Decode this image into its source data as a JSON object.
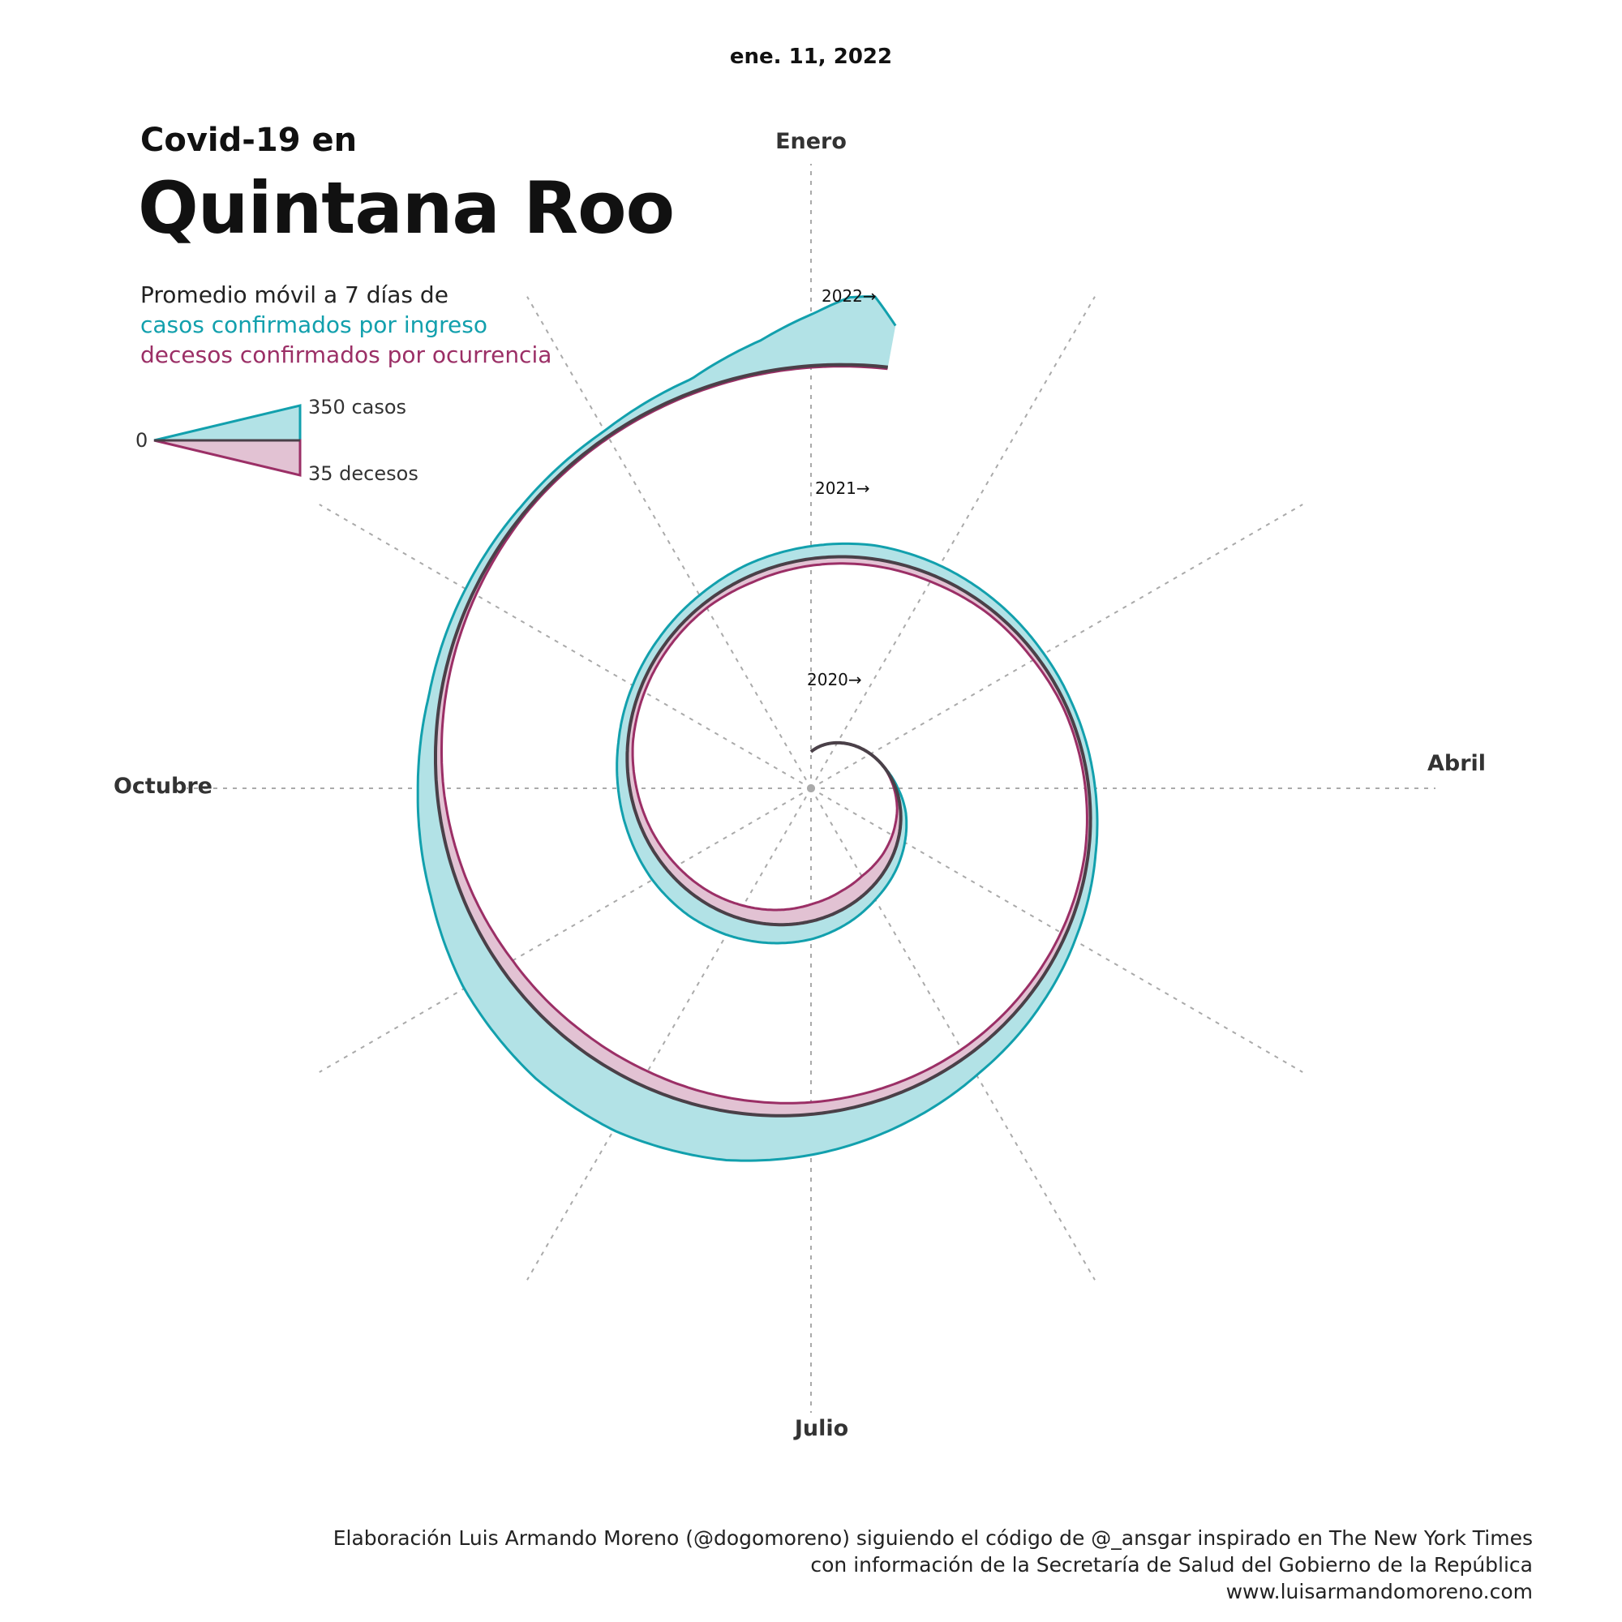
{
  "header": {
    "date": "ene. 11, 2022",
    "title_small": "Covid-19 en",
    "title_big": "Quintana Roo",
    "subtitle_line1": "Promedio móvil a 7 días de",
    "subtitle_line2": "casos confirmados por ingreso",
    "subtitle_line3": "decesos confirmados por ocurrencia"
  },
  "legend": {
    "zero": "0",
    "cases": "350 casos",
    "deaths": "35 decesos"
  },
  "footer": {
    "line1": "Elaboración Luis Armando Moreno (@dogomoreno) siguiendo el código de @_ansgar inspirado en The New York Times",
    "line2": "con información de la Secretaría de Salud del Gobierno de la República",
    "line3": "www.luisarmandomoreno.com"
  },
  "colors": {
    "cases_fill": "#b2e2e6",
    "cases_stroke": "#12a0ad",
    "deaths_fill": "#e2c2d3",
    "deaths_stroke": "#9b2f66",
    "baseline": "#4a4048",
    "grid": "#aaaaaa"
  },
  "chart_data": {
    "type": "area",
    "layout": "spiral (one revolution per year, clockwise, January at top)",
    "months": [
      "Enero",
      "Abril",
      "Julio",
      "Octubre"
    ],
    "year_labels": [
      "2020→",
      "2021→",
      "2022→"
    ],
    "legend_scale": {
      "cases": 350,
      "deaths": 35
    },
    "series": [
      {
        "name": "casos confirmados por ingreso",
        "points": [
          [
            "2020-03-15",
            0
          ],
          [
            "2020-04-01",
            10
          ],
          [
            "2020-04-15",
            25
          ],
          [
            "2020-05-01",
            35
          ],
          [
            "2020-05-15",
            45
          ],
          [
            "2020-06-01",
            55
          ],
          [
            "2020-06-15",
            70
          ],
          [
            "2020-07-01",
            85
          ],
          [
            "2020-07-15",
            90
          ],
          [
            "2020-08-01",
            95
          ],
          [
            "2020-08-15",
            95
          ],
          [
            "2020-09-01",
            85
          ],
          [
            "2020-09-15",
            70
          ],
          [
            "2020-10-01",
            55
          ],
          [
            "2020-10-15",
            45
          ],
          [
            "2020-11-01",
            40
          ],
          [
            "2020-11-15",
            40
          ],
          [
            "2020-12-01",
            45
          ],
          [
            "2020-12-15",
            55
          ],
          [
            "2021-01-01",
            60
          ],
          [
            "2021-01-15",
            65
          ],
          [
            "2021-02-01",
            55
          ],
          [
            "2021-02-15",
            45
          ],
          [
            "2021-03-01",
            35
          ],
          [
            "2021-03-15",
            30
          ],
          [
            "2021-04-01",
            30
          ],
          [
            "2021-04-15",
            35
          ],
          [
            "2021-05-01",
            50
          ],
          [
            "2021-05-15",
            70
          ],
          [
            "2021-06-01",
            100
          ],
          [
            "2021-06-15",
            140
          ],
          [
            "2021-07-01",
            190
          ],
          [
            "2021-07-15",
            230
          ],
          [
            "2021-08-01",
            250
          ],
          [
            "2021-08-15",
            240
          ],
          [
            "2021-09-01",
            200
          ],
          [
            "2021-09-15",
            140
          ],
          [
            "2021-10-01",
            90
          ],
          [
            "2021-10-15",
            55
          ],
          [
            "2021-11-01",
            40
          ],
          [
            "2021-11-15",
            30
          ],
          [
            "2021-12-01",
            30
          ],
          [
            "2021-12-15",
            60
          ],
          [
            "2021-12-25",
            150
          ],
          [
            "2022-01-01",
            250
          ],
          [
            "2022-01-05",
            320
          ],
          [
            "2022-01-08",
            330
          ],
          [
            "2022-01-11",
            200
          ]
        ]
      },
      {
        "name": "decesos confirmados por ocurrencia",
        "points": [
          [
            "2020-03-15",
            0
          ],
          [
            "2020-04-01",
            1
          ],
          [
            "2020-04-15",
            2
          ],
          [
            "2020-05-01",
            4
          ],
          [
            "2020-05-15",
            6
          ],
          [
            "2020-06-01",
            9
          ],
          [
            "2020-06-15",
            10
          ],
          [
            "2020-07-01",
            10
          ],
          [
            "2020-07-15",
            9
          ],
          [
            "2020-08-01",
            8
          ],
          [
            "2020-08-15",
            7
          ],
          [
            "2020-09-01",
            6
          ],
          [
            "2020-09-15",
            5
          ],
          [
            "2020-10-01",
            4
          ],
          [
            "2020-10-15",
            3
          ],
          [
            "2020-11-01",
            3
          ],
          [
            "2020-11-15",
            3
          ],
          [
            "2020-12-01",
            3
          ],
          [
            "2020-12-15",
            4
          ],
          [
            "2021-01-01",
            4
          ],
          [
            "2021-01-15",
            4
          ],
          [
            "2021-02-01",
            4
          ],
          [
            "2021-02-15",
            3
          ],
          [
            "2021-03-01",
            3
          ],
          [
            "2021-03-15",
            2
          ],
          [
            "2021-04-01",
            2
          ],
          [
            "2021-04-15",
            2
          ],
          [
            "2021-05-01",
            3
          ],
          [
            "2021-05-15",
            4
          ],
          [
            "2021-06-01",
            5
          ],
          [
            "2021-06-15",
            6
          ],
          [
            "2021-07-01",
            7
          ],
          [
            "2021-07-15",
            8
          ],
          [
            "2021-08-01",
            9
          ],
          [
            "2021-08-15",
            9
          ],
          [
            "2021-09-01",
            8
          ],
          [
            "2021-09-15",
            6
          ],
          [
            "2021-10-01",
            4
          ],
          [
            "2021-10-15",
            3
          ],
          [
            "2021-11-01",
            2
          ],
          [
            "2021-11-15",
            1
          ],
          [
            "2021-12-01",
            1
          ],
          [
            "2021-12-15",
            1
          ],
          [
            "2021-12-25",
            1
          ],
          [
            "2022-01-01",
            1
          ],
          [
            "2022-01-05",
            1
          ],
          [
            "2022-01-08",
            1
          ],
          [
            "2022-01-11",
            1
          ]
        ]
      }
    ]
  }
}
